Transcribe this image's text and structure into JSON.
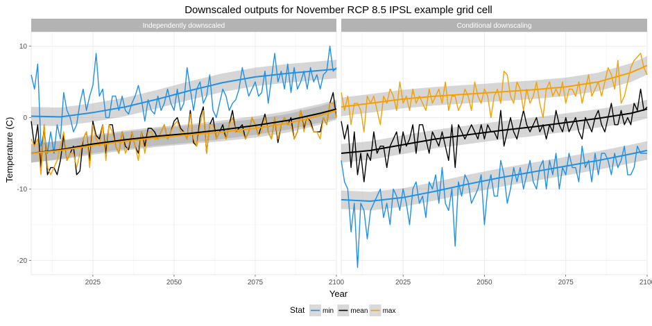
{
  "chart_data": {
    "type": "line",
    "title": "Downscaled outputs for November RCP 8.5 IPSL example grid cell",
    "xlabel": "Year",
    "ylabel": "Temperature (C)",
    "xlim": [
      2006,
      2100
    ],
    "ylim": [
      -22,
      12
    ],
    "x_ticks": [
      2025,
      2050,
      2075,
      2100
    ],
    "y_ticks": [
      -20,
      -10,
      0,
      10
    ],
    "grid": true,
    "legend": {
      "title": "Stat",
      "position": "bottom",
      "entries": [
        {
          "label": "min",
          "color": "#1e90e6"
        },
        {
          "label": "mean",
          "color": "#000000"
        },
        {
          "label": "max",
          "color": "#f5a000"
        }
      ]
    },
    "panels": [
      {
        "strip": "Independently downscaled",
        "series": [
          {
            "name": "min",
            "color": "#1e90e6",
            "smooth": [
              [
                2006,
                0.2
              ],
              [
                2015,
                0.1
              ],
              [
                2025,
                0.7
              ],
              [
                2035,
                1.5
              ],
              [
                2045,
                2.6
              ],
              [
                2055,
                3.8
              ],
              [
                2065,
                4.9
              ],
              [
                2075,
                5.7
              ],
              [
                2085,
                6.2
              ],
              [
                2095,
                6.6
              ],
              [
                2100,
                6.8
              ]
            ],
            "values": [
              6,
              4,
              7.5,
              -4,
              -2,
              -5,
              -2,
              -5,
              -1,
              -3,
              3.5,
              1,
              0,
              -2,
              -1,
              2,
              4,
              1,
              3,
              4.5,
              9,
              3,
              4,
              0,
              0,
              3,
              3,
              1,
              3,
              1,
              0.5,
              2,
              3,
              4.5,
              2.5,
              -0.5,
              2.5,
              1,
              0.5,
              3,
              1,
              2,
              4,
              2,
              1,
              4,
              1,
              2,
              7,
              4,
              1,
              4,
              5,
              2,
              3,
              6,
              1,
              0,
              2,
              4,
              3,
              1,
              2,
              2.5,
              4,
              7,
              5,
              3,
              4,
              5,
              3,
              3.5,
              6.5,
              2,
              5.5,
              9,
              5,
              6.5,
              4,
              7.5,
              3.5,
              7,
              4,
              5,
              6.5,
              4,
              7,
              5,
              6,
              4,
              6,
              6.5,
              10,
              6.5,
              7
            ]
          },
          {
            "name": "mean",
            "color": "#000000",
            "smooth": [
              [
                2006,
                -5
              ],
              [
                2015,
                -4.5
              ],
              [
                2025,
                -3.7
              ],
              [
                2035,
                -3.1
              ],
              [
                2045,
                -2.6
              ],
              [
                2055,
                -2.2
              ],
              [
                2065,
                -1.7
              ],
              [
                2075,
                -1.1
              ],
              [
                2085,
                -0.4
              ],
              [
                2095,
                0.6
              ],
              [
                2100,
                1.2
              ]
            ],
            "values": [
              -0.5,
              -4,
              -1,
              -7,
              -1,
              -8,
              -7,
              -7,
              -8,
              -6,
              -2.5,
              -6,
              -5,
              -4,
              -8,
              -7.5,
              -3,
              -2,
              -6,
              -0.5,
              -2.5,
              -3,
              -1,
              -5,
              -1,
              -1,
              -4,
              -5,
              -2,
              -4,
              -4.5,
              -2,
              -4,
              -5,
              -2,
              -4,
              -1.5,
              -1.5,
              -2,
              -3,
              -2,
              -1,
              -3,
              -2,
              -0.5,
              0,
              -1.5,
              -2,
              -3,
              1,
              -3.5,
              -4,
              0,
              1.5,
              -5,
              -1,
              0,
              -3,
              -2,
              -1,
              -3,
              -1,
              1,
              -2,
              -1.5,
              -1,
              -3,
              -2,
              0,
              -1,
              -2.5,
              -1,
              0.5,
              -2,
              -3,
              0,
              -3.5,
              -1,
              0,
              -1,
              0,
              -3,
              -2,
              1,
              -1.5,
              0,
              -0.5,
              -2,
              -2,
              -2,
              0,
              -1,
              2,
              3.5,
              0
            ]
          },
          {
            "name": "max",
            "color": "#f5a000",
            "smooth": [
              [
                2006,
                -5
              ],
              [
                2015,
                -4.6
              ],
              [
                2025,
                -3.9
              ],
              [
                2035,
                -3.3
              ],
              [
                2045,
                -2.8
              ],
              [
                2055,
                -2.4
              ],
              [
                2065,
                -2
              ],
              [
                2075,
                -1.5
              ],
              [
                2085,
                -0.8
              ],
              [
                2095,
                0.3
              ],
              [
                2100,
                1
              ]
            ],
            "values": [
              -3,
              -4,
              -3,
              -8,
              -1,
              -7,
              -8,
              -7,
              -6,
              -4,
              -2,
              -6,
              -5,
              -5,
              -7,
              -5,
              -3,
              -2,
              -7,
              -1,
              -3,
              -4,
              -1,
              -6,
              -1,
              -2,
              -4,
              -5,
              -2,
              -5,
              -4,
              -2,
              -4,
              -6,
              -2,
              -5,
              -2,
              -2,
              -3,
              -3,
              -2,
              -1,
              -3,
              -2,
              -1,
              -0.5,
              -2,
              -2,
              -3,
              0.5,
              -3,
              -4,
              -1,
              1,
              -5,
              -1,
              -1,
              -3,
              -2,
              -2,
              -3,
              -1,
              0,
              -2,
              -2,
              -2,
              -3,
              -2,
              0,
              -1,
              -2.5,
              -2,
              0,
              -2,
              -3,
              0,
              -3,
              -1,
              0,
              -1,
              -1,
              -3,
              -2,
              1,
              -2,
              0,
              -1,
              -2,
              -2,
              -3,
              0,
              -1,
              2,
              2,
              0
            ]
          }
        ]
      },
      {
        "strip": "Conditional downscaling",
        "series": [
          {
            "name": "min",
            "color": "#1e90e6",
            "smooth": [
              [
                2006,
                -11.5
              ],
              [
                2015,
                -11.7
              ],
              [
                2025,
                -11.2
              ],
              [
                2035,
                -10.3
              ],
              [
                2045,
                -9.3
              ],
              [
                2055,
                -8.4
              ],
              [
                2065,
                -7.6
              ],
              [
                2075,
                -6.8
              ],
              [
                2085,
                -6
              ],
              [
                2095,
                -5.1
              ],
              [
                2100,
                -4.6
              ]
            ],
            "values": [
              -6,
              -9,
              -10,
              -16,
              -12,
              -21,
              -12,
              -13,
              -17,
              -13,
              -12,
              -11,
              -10,
              -14,
              -12,
              -15,
              -10,
              -11,
              -13,
              -10,
              -12,
              -15,
              -10,
              -9,
              -12,
              -11,
              -14,
              -9,
              -10,
              -8,
              -12,
              -7,
              -12,
              -13,
              -10,
              -18,
              -9,
              -11,
              -8,
              -9,
              -12,
              -11,
              -10,
              -8,
              -15,
              -10,
              -8,
              -11,
              -11,
              -6,
              -8,
              -12,
              -10,
              -7,
              -9,
              -7,
              -10,
              -8,
              -6,
              -9,
              -10,
              -7,
              -6,
              -10,
              -6,
              -8,
              -5,
              -10,
              -7,
              -8,
              -5,
              -7,
              -7,
              -9,
              -4,
              -7,
              -6,
              -9,
              -5,
              -8,
              -5,
              -5,
              -6,
              -8,
              -5,
              -7,
              -6,
              -4,
              -8,
              -8,
              -7,
              -4,
              -5,
              -5,
              -5
            ]
          },
          {
            "name": "mean",
            "color": "#000000",
            "smooth": [
              [
                2006,
                -5
              ],
              [
                2015,
                -4.6
              ],
              [
                2025,
                -3.8
              ],
              [
                2035,
                -3
              ],
              [
                2045,
                -2.4
              ],
              [
                2055,
                -1.8
              ],
              [
                2065,
                -1.3
              ],
              [
                2075,
                -0.7
              ],
              [
                2085,
                -0.1
              ],
              [
                2095,
                0.6
              ],
              [
                2100,
                1.2
              ]
            ],
            "values": [
              -0.5,
              -3,
              -1,
              -7,
              -2,
              -8,
              -5,
              -9,
              -5,
              -6,
              -2,
              -5,
              -4,
              -4,
              -7,
              -4,
              -3,
              -2,
              -5,
              -2,
              -4,
              -3,
              -1,
              -5,
              -1,
              -1,
              -3,
              -5,
              -2,
              -3,
              -4,
              -2,
              -4,
              -6,
              -1,
              -7,
              -1,
              -2,
              -3,
              -2,
              -1,
              -2,
              -3,
              -1,
              -3,
              -1,
              -2,
              -2,
              -3,
              1,
              -4,
              -2,
              0,
              -2,
              -3,
              -1,
              1,
              -1,
              -2,
              -1,
              0,
              -2,
              -1,
              -3,
              -1,
              -2,
              1,
              -1,
              -2,
              0,
              -2,
              -1,
              0,
              -2,
              -3,
              0,
              -1,
              -2,
              0,
              1,
              -1,
              -2,
              0,
              2,
              -1,
              -1,
              1,
              -1,
              0,
              -1,
              2,
              1,
              4,
              1,
              1.5
            ]
          },
          {
            "name": "max",
            "color": "#f5a000",
            "smooth": [
              [
                2006,
                1.5
              ],
              [
                2015,
                2
              ],
              [
                2025,
                2.6
              ],
              [
                2035,
                3
              ],
              [
                2045,
                3.3
              ],
              [
                2055,
                3.6
              ],
              [
                2065,
                3.9
              ],
              [
                2075,
                4.3
              ],
              [
                2085,
                5
              ],
              [
                2095,
                6.3
              ],
              [
                2100,
                7.3
              ]
            ],
            "values": [
              3.5,
              1,
              3,
              -1,
              2,
              2,
              1,
              -2,
              3,
              2,
              3,
              1,
              -1,
              3,
              2,
              4,
              3,
              1,
              5,
              2,
              3,
              1,
              4,
              2,
              3,
              2,
              1,
              4,
              2,
              3,
              4,
              2,
              5,
              1,
              3,
              3,
              1,
              2,
              4,
              3,
              1,
              5,
              3,
              2,
              4,
              3,
              0,
              3,
              4,
              2,
              6.5,
              6,
              3,
              2,
              5,
              4,
              1,
              4,
              2,
              3,
              5,
              2,
              0,
              4,
              5,
              3,
              4,
              3,
              5,
              2,
              4,
              4,
              3,
              5,
              2,
              4,
              6,
              3,
              4,
              5,
              3,
              5,
              7,
              6,
              4,
              8,
              2,
              3,
              5,
              7,
              8,
              8.5,
              9,
              7,
              6
            ]
          }
        ]
      }
    ]
  }
}
